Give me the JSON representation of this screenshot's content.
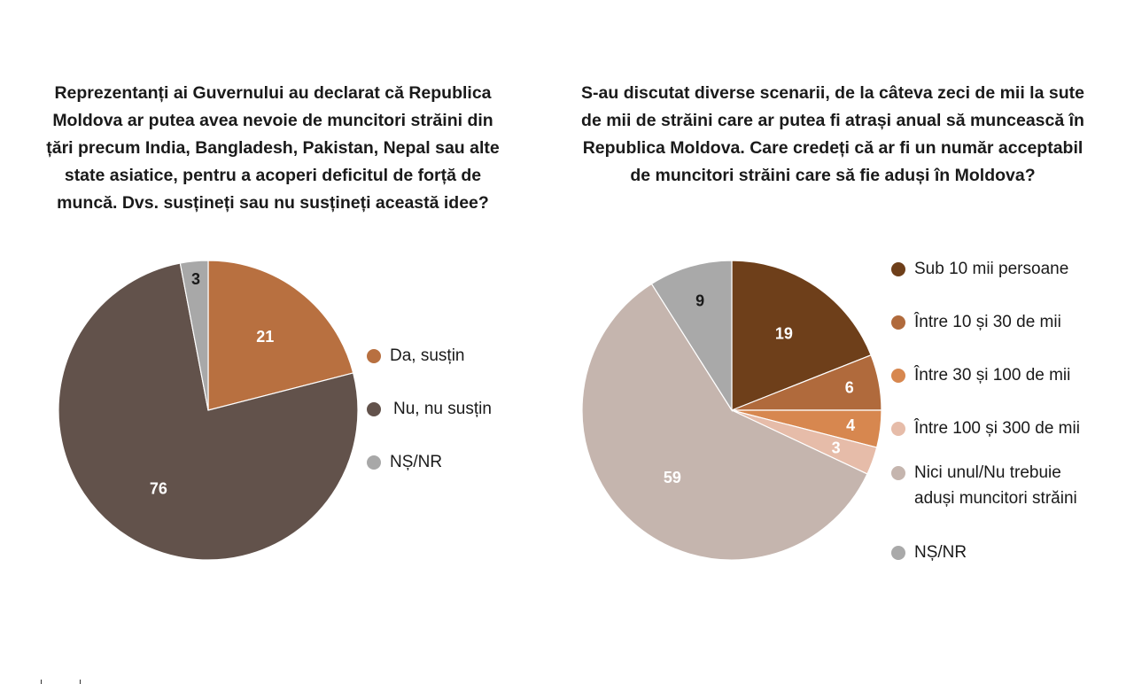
{
  "charts": [
    {
      "id": "left",
      "chart_data": {
        "type": "pie",
        "title": "Reprezentanți ai Guvernului au declarat că Republica Moldova ar putea avea nevoie de muncitori străini din țări precum India, Bangladesh, Pakistan, Nepal sau alte state asiatice, pentru a acoperi deficitul de forță de muncă. Dvs. susțineți sau nu susțineți această idee?",
        "title_lines": [
          "Reprezentanți ai Guvernului au declarat că Republica",
          "Moldova ar putea avea nevoie de muncitori străini din",
          "țări precum India, Bangladesh, Pakistan, Nepal sau alte",
          "state asiatice, pentru a acoperi deficitul de forță de",
          "muncă. Dvs. susțineți sau nu susțineți această idee?"
        ],
        "categories": [
          "Da, susțin",
          "Nu, nu susțin",
          "NȘ/NR"
        ],
        "values": [
          21,
          76,
          3
        ],
        "colors": [
          "#B87040",
          "#62524B",
          "#A8A8A8"
        ],
        "label_colors": [
          "#ffffff",
          "#ffffff",
          "#1a1a1a"
        ],
        "legend_position": "right"
      }
    },
    {
      "id": "right",
      "chart_data": {
        "type": "pie",
        "title": "S-au discutat diverse scenarii, de la câteva zeci de mii la sute de mii de străini care ar putea fi atrași anual să muncească în Republica Moldova. Care credeți că ar fi un număr acceptabil de muncitori străini care să fie aduși în Moldova?",
        "title_lines": [
          "S-au discutat diverse scenarii, de la câteva zeci de mii la sute",
          "de mii de străini care ar putea fi atrași anual să muncească în",
          "Republica Moldova. Care credeți că ar fi un număr acceptabil",
          "de muncitori străini care să fie aduși în Moldova?"
        ],
        "categories": [
          "Sub 10 mii persoane",
          "Între 10 și 30 de mii",
          "Între 30 și 100 de mii",
          "Între 100 și 300 de mii",
          "Nici unul/Nu trebuie aduși muncitori străini",
          "NȘ/NR"
        ],
        "legend_lines": [
          [
            "Sub 10 mii persoane"
          ],
          [
            "Între 10 și 30 de mii"
          ],
          [
            "Între 30 și 100 de mii"
          ],
          [
            "Între 100 și 300 de mii"
          ],
          [
            "Nici unul/Nu trebuie",
            "aduși muncitori străini"
          ],
          [
            "NȘ/NR"
          ]
        ],
        "values": [
          19,
          6,
          4,
          3,
          59,
          9
        ],
        "colors": [
          "#6E3F1A",
          "#B06A3C",
          "#D7874F",
          "#E6BCA9",
          "#C5B5AE",
          "#A9A9A9"
        ],
        "label_colors": [
          "#ffffff",
          "#ffffff",
          "#ffffff",
          "#ffffff",
          "#ffffff",
          "#1a1a1a"
        ],
        "legend_position": "right"
      }
    }
  ]
}
